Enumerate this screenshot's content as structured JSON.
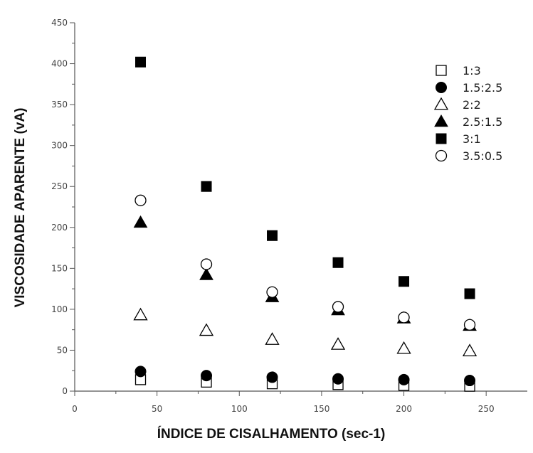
{
  "chart_data": {
    "type": "scatter",
    "xlabel": "ÍNDICE DE CISALHAMENTO (sec-1)",
    "ylabel": "VISCOSIDADE APARENTE (vA)",
    "xlim": [
      0,
      275
    ],
    "ylim": [
      0,
      450
    ],
    "x_ticks": [
      0,
      50,
      100,
      150,
      200,
      250
    ],
    "y_ticks": [
      0,
      50,
      100,
      150,
      200,
      250,
      300,
      350,
      400,
      450
    ],
    "grid": false,
    "legend_position": "top-right",
    "x": [
      40,
      80,
      120,
      160,
      200,
      240
    ],
    "series": [
      {
        "name": "1:3",
        "marker": "open-square",
        "values": [
          14,
          11,
          9,
          8,
          7,
          6
        ]
      },
      {
        "name": "1.5:2.5",
        "marker": "filled-circle",
        "values": [
          24,
          19,
          17,
          15,
          14,
          13
        ]
      },
      {
        "name": "2:2",
        "marker": "open-triangle",
        "values": [
          93,
          74,
          63,
          57,
          52,
          49
        ]
      },
      {
        "name": "2.5:1.5",
        "marker": "filled-triangle",
        "values": [
          206,
          142,
          115,
          99,
          89,
          80
        ]
      },
      {
        "name": "3:1",
        "marker": "filled-square",
        "values": [
          402,
          250,
          190,
          157,
          134,
          119
        ]
      },
      {
        "name": "3.5:0.5",
        "marker": "open-circle",
        "values": [
          233,
          155,
          121,
          103,
          90,
          81
        ]
      }
    ]
  }
}
